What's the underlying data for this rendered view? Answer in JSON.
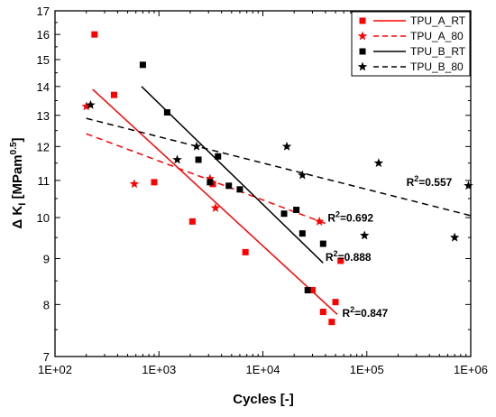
{
  "chart_data": {
    "type": "scatter",
    "xlabel": "Cycles [-]",
    "ylabel": "Δ K",
    "ylabel_sub": "I",
    "ylabel_unit": " [MPam",
    "ylabel_exp": "0.5",
    "ylabel_close": "]",
    "xscale": "log",
    "yscale": "log",
    "xlim": [
      100,
      1000000
    ],
    "ylim": [
      7,
      17
    ],
    "x_ticks": [
      100,
      1000,
      10000,
      100000,
      1000000
    ],
    "x_tick_labels": [
      "1E+02",
      "1E+03",
      "1E+04",
      "1E+05",
      "1E+06"
    ],
    "y_ticks": [
      7,
      8,
      9,
      10,
      11,
      12,
      13,
      14,
      15,
      16,
      17
    ],
    "y_tick_labels": [
      "7",
      "8",
      "9",
      "10",
      "11",
      "12",
      "13",
      "14",
      "15",
      "16",
      "17"
    ],
    "grid": false,
    "legend_position": "top-right",
    "series": [
      {
        "name": "TPU_A_RT",
        "color": "#ff0000",
        "marker": "square",
        "line": "solid",
        "points": [
          [
            240,
            16.0
          ],
          [
            370,
            13.7
          ],
          [
            900,
            10.95
          ],
          [
            2100,
            9.9
          ],
          [
            3300,
            10.9
          ],
          [
            6800,
            9.15
          ],
          [
            30000,
            8.3
          ],
          [
            38000,
            7.85
          ],
          [
            46000,
            7.65
          ],
          [
            50000,
            8.05
          ],
          [
            56000,
            8.95
          ]
        ],
        "fit": [
          [
            230,
            13.9
          ],
          [
            52000,
            7.8
          ]
        ]
      },
      {
        "name": "TPU_A_80",
        "color": "#ff0000",
        "marker": "star",
        "line": "dashed",
        "points": [
          [
            200,
            13.3
          ],
          [
            580,
            10.9
          ],
          [
            3100,
            11.05
          ],
          [
            3500,
            10.25
          ],
          [
            35000,
            9.9
          ]
        ],
        "fit": [
          [
            200,
            12.4
          ],
          [
            40000,
            9.85
          ]
        ]
      },
      {
        "name": "TPU_B_RT",
        "color": "#000000",
        "marker": "square",
        "line": "solid",
        "points": [
          [
            700,
            14.8
          ],
          [
            1200,
            13.1
          ],
          [
            2400,
            11.6
          ],
          [
            3100,
            10.95
          ],
          [
            3700,
            11.7
          ],
          [
            4700,
            10.85
          ],
          [
            6000,
            10.75
          ],
          [
            16000,
            10.1
          ],
          [
            21000,
            10.2
          ],
          [
            24000,
            9.6
          ],
          [
            27000,
            8.3
          ],
          [
            38000,
            9.35
          ]
        ],
        "fit": [
          [
            680,
            14.0
          ],
          [
            38000,
            8.9
          ]
        ]
      },
      {
        "name": "TPU_B_80",
        "color": "#000000",
        "marker": "star",
        "line": "dashed",
        "points": [
          [
            220,
            13.35
          ],
          [
            1500,
            11.6
          ],
          [
            2300,
            12.0
          ],
          [
            17000,
            12.0
          ],
          [
            24000,
            11.15
          ],
          [
            95000,
            9.55
          ],
          [
            130000,
            11.5
          ],
          [
            700000,
            9.5
          ],
          [
            950000,
            10.85
          ]
        ],
        "fit": [
          [
            200,
            12.9
          ],
          [
            1000000,
            10.05
          ]
        ]
      }
    ],
    "annotations": [
      {
        "text": "R",
        "sup": "2",
        "rest": "=0.557",
        "x": 240000,
        "y": 10.85
      },
      {
        "text": "R",
        "sup": "2",
        "rest": "=0.692",
        "x": 42000,
        "y": 9.9
      },
      {
        "text": "R",
        "sup": "2",
        "rest": "=0.888",
        "x": 40000,
        "y": 8.95
      },
      {
        "text": "R",
        "sup": "2",
        "rest": "=0.847",
        "x": 58000,
        "y": 7.75
      }
    ]
  }
}
